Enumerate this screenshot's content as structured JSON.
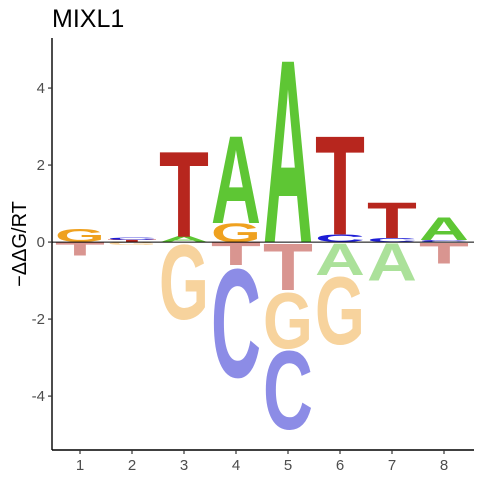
{
  "chart_data": {
    "type": "sequence-logo",
    "title": "MIXL1",
    "xlabel": "",
    "ylabel": "−ΔΔG/RT",
    "x_ticks": [
      "1",
      "2",
      "3",
      "4",
      "5",
      "6",
      "7",
      "8"
    ],
    "y_ticks": [
      "-4",
      "-2",
      "0",
      "2",
      "4"
    ],
    "ylim": [
      -5.4,
      5.3
    ],
    "grid": false,
    "colors": {
      "A": "#5ec634",
      "C": "#1d1dd6",
      "G": "#efa11f",
      "T": "#b7261e",
      "A_faded": "#abe19a",
      "C_faded": "#8c8ce6",
      "G_faded": "#f7d39d",
      "T_faded": "#d99590"
    },
    "positions": [
      {
        "x": "1",
        "positive": [
          {
            "base": "G",
            "value": 0.35
          }
        ],
        "negative": [
          {
            "base": "T",
            "value": 0.35
          }
        ]
      },
      {
        "x": "2",
        "positive": [
          {
            "base": "T",
            "value": 0.06
          },
          {
            "base": "C",
            "value": 0.06
          }
        ],
        "negative": [
          {
            "base": "G",
            "value": 0.08
          }
        ]
      },
      {
        "x": "3",
        "positive": [
          {
            "base": "A",
            "value": 0.15
          },
          {
            "base": "T",
            "value": 2.3
          }
        ],
        "negative": [
          {
            "base": "G",
            "value": 2.0
          }
        ]
      },
      {
        "x": "4",
        "positive": [
          {
            "base": "G",
            "value": 0.5
          },
          {
            "base": "A",
            "value": 2.35
          }
        ],
        "negative": [
          {
            "base": "T",
            "value": 0.6
          },
          {
            "base": "C",
            "value": 2.9
          }
        ]
      },
      {
        "x": "5",
        "positive": [
          {
            "base": "A",
            "value": 4.9
          }
        ],
        "negative": [
          {
            "base": "T",
            "value": 1.25
          },
          {
            "base": "G",
            "value": 1.5
          },
          {
            "base": "C",
            "value": 2.1
          }
        ]
      },
      {
        "x": "6",
        "positive": [
          {
            "base": "C",
            "value": 0.2
          },
          {
            "base": "T",
            "value": 2.65
          }
        ],
        "negative": [
          {
            "base": "A",
            "value": 0.85
          },
          {
            "base": "G",
            "value": 1.8
          }
        ]
      },
      {
        "x": "7",
        "positive": [
          {
            "base": "C",
            "value": 0.1
          },
          {
            "base": "T",
            "value": 0.95
          }
        ],
        "negative": [
          {
            "base": "A",
            "value": 1.0
          }
        ]
      },
      {
        "x": "8",
        "positive": [
          {
            "base": "C",
            "value": 0.05
          },
          {
            "base": "A",
            "value": 0.6
          }
        ],
        "negative": [
          {
            "base": "T",
            "value": 0.55
          }
        ]
      }
    ]
  }
}
